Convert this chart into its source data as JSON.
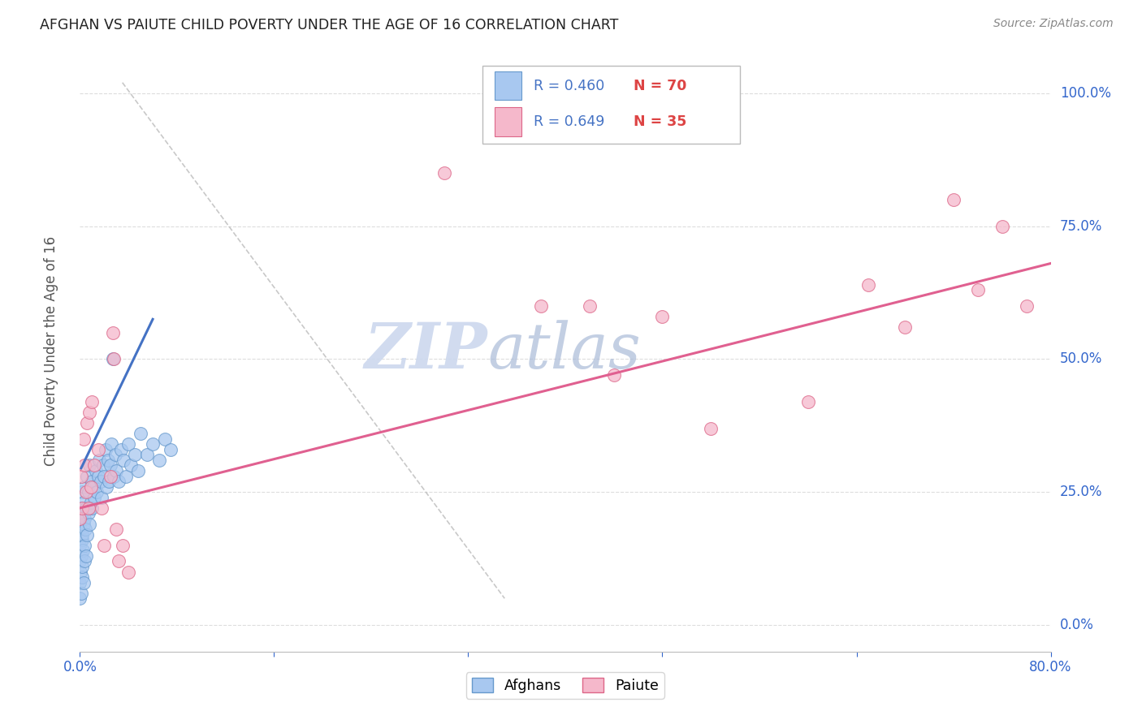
{
  "title": "AFGHAN VS PAIUTE CHILD POVERTY UNDER THE AGE OF 16 CORRELATION CHART",
  "source": "Source: ZipAtlas.com",
  "ylabel": "Child Poverty Under the Age of 16",
  "ytick_labels": [
    "0.0%",
    "25.0%",
    "50.0%",
    "75.0%",
    "100.0%"
  ],
  "ytick_values": [
    0.0,
    0.25,
    0.5,
    0.75,
    1.0
  ],
  "legend_label_afghan": "Afghans",
  "legend_label_paiute": "Paiute",
  "legend_R_afghan": "R = 0.460",
  "legend_N_afghan": "N = 70",
  "legend_R_paiute": "R = 0.649",
  "legend_N_paiute": "N = 35",
  "color_afghan_fill": "#a8c8f0",
  "color_afghan_edge": "#6699cc",
  "color_paiute_fill": "#f5b8cb",
  "color_paiute_edge": "#dd6688",
  "color_trendline_afghan": "#4472c4",
  "color_trendline_paiute": "#e06090",
  "color_refline": "#bbbbbb",
  "color_axis_blue": "#3366cc",
  "color_title": "#222222",
  "color_source": "#888888",
  "color_watermark": "#ccd8ee",
  "watermark_text1": "ZIP",
  "watermark_text2": "atlas",
  "background_color": "#ffffff",
  "xlim": [
    0.0,
    0.8
  ],
  "ylim": [
    -0.05,
    1.08
  ],
  "afghan_x": [
    0.0,
    0.0,
    0.0,
    0.0,
    0.0005,
    0.0005,
    0.001,
    0.001,
    0.001,
    0.001,
    0.0015,
    0.0015,
    0.002,
    0.002,
    0.002,
    0.002,
    0.0025,
    0.003,
    0.003,
    0.003,
    0.0035,
    0.004,
    0.004,
    0.004,
    0.0045,
    0.005,
    0.005,
    0.006,
    0.006,
    0.007,
    0.007,
    0.008,
    0.008,
    0.009,
    0.01,
    0.01,
    0.011,
    0.012,
    0.013,
    0.014,
    0.015,
    0.016,
    0.017,
    0.018,
    0.019,
    0.02,
    0.021,
    0.022,
    0.023,
    0.024,
    0.025,
    0.026,
    0.027,
    0.028,
    0.029,
    0.03,
    0.032,
    0.034,
    0.036,
    0.038,
    0.04,
    0.042,
    0.045,
    0.048,
    0.05,
    0.055,
    0.06,
    0.065,
    0.07,
    0.075
  ],
  "afghan_y": [
    0.05,
    0.08,
    0.12,
    0.15,
    0.1,
    0.18,
    0.06,
    0.13,
    0.2,
    0.22,
    0.09,
    0.16,
    0.11,
    0.17,
    0.21,
    0.25,
    0.14,
    0.08,
    0.19,
    0.23,
    0.12,
    0.15,
    0.2,
    0.26,
    0.18,
    0.13,
    0.22,
    0.17,
    0.28,
    0.21,
    0.25,
    0.19,
    0.3,
    0.23,
    0.27,
    0.22,
    0.26,
    0.24,
    0.29,
    0.25,
    0.28,
    0.31,
    0.27,
    0.24,
    0.3,
    0.28,
    0.33,
    0.26,
    0.31,
    0.27,
    0.3,
    0.34,
    0.5,
    0.28,
    0.32,
    0.29,
    0.27,
    0.33,
    0.31,
    0.28,
    0.34,
    0.3,
    0.32,
    0.29,
    0.36,
    0.32,
    0.34,
    0.31,
    0.35,
    0.33
  ],
  "paiute_x": [
    0.0,
    0.001,
    0.002,
    0.003,
    0.004,
    0.005,
    0.006,
    0.007,
    0.008,
    0.009,
    0.01,
    0.012,
    0.015,
    0.018,
    0.02,
    0.025,
    0.027,
    0.028,
    0.03,
    0.032,
    0.035,
    0.04,
    0.3,
    0.38,
    0.42,
    0.44,
    0.48,
    0.52,
    0.6,
    0.65,
    0.68,
    0.72,
    0.74,
    0.76,
    0.78
  ],
  "paiute_y": [
    0.2,
    0.28,
    0.22,
    0.35,
    0.3,
    0.25,
    0.38,
    0.22,
    0.4,
    0.26,
    0.42,
    0.3,
    0.33,
    0.22,
    0.15,
    0.28,
    0.55,
    0.5,
    0.18,
    0.12,
    0.15,
    0.1,
    0.85,
    0.6,
    0.6,
    0.47,
    0.58,
    0.37,
    0.42,
    0.64,
    0.56,
    0.8,
    0.63,
    0.75,
    0.6
  ],
  "afghan_trendline_x": [
    0.001,
    0.06
  ],
  "afghan_trendline_y": [
    0.295,
    0.575
  ],
  "paiute_trendline_x": [
    0.0,
    0.8
  ],
  "paiute_trendline_y": [
    0.22,
    0.68
  ],
  "ref_line_x": [
    0.035,
    0.35
  ],
  "ref_line_y": [
    1.02,
    0.05
  ]
}
